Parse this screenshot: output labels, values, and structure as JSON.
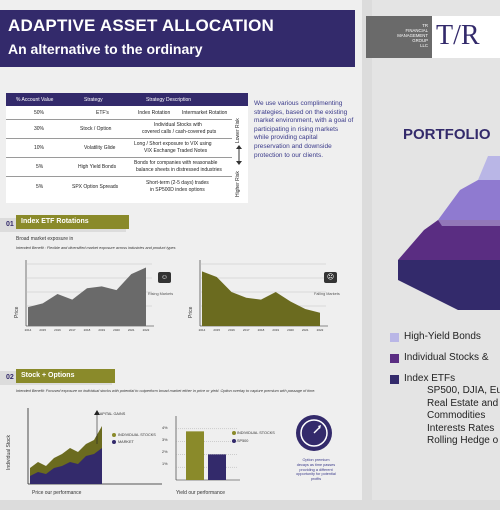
{
  "header": {
    "title": "ADAPTIVE ASSET ALLOCATION",
    "subtitle": "An alternative to the ordinary"
  },
  "logo": {
    "lines": [
      "TR",
      "FINANCIAL",
      "MANAGEMENT",
      "GROUP",
      "LLC"
    ],
    "mark": "T/R"
  },
  "allocation_table": {
    "headers": [
      "% Account Value",
      "Strategy",
      "Strategy Description"
    ],
    "rows": [
      {
        "pct": "50%",
        "strategy": "ETF's",
        "desc1": "Index Rotation",
        "desc2": "Intermarket Rotation"
      },
      {
        "pct": "30%",
        "strategy": "Stock / Option",
        "desc1": "Individual Stocks with",
        "desc2": "covered calls / cash-covered puts"
      },
      {
        "pct": "10%",
        "strategy": "Volatility Glide",
        "desc1": "Long / Short exposure to VIX using",
        "desc2": "VIX Exchange Traded Notes"
      },
      {
        "pct": "5%",
        "strategy": "High Yield Bonds",
        "desc1": "Bonds for companies with reasonable",
        "desc2": "balance sheets in distressed industries"
      },
      {
        "pct": "5%",
        "strategy": "SPX Option Spreads",
        "desc1": "Short-term (2-5 days) trades",
        "desc2": "in SP500D index options"
      }
    ],
    "risk_low": "Lower Risk",
    "risk_high": "Higher Risk"
  },
  "description": "We use various complimenting strategies, based on the existing market environment, with a goal of participating in rising markets while providing capital preservation and downside protection to our clients.",
  "section1": {
    "num": "01",
    "title": "Index ETF Rotations",
    "exposure": "Broad market exposure in",
    "benefit": "Intended Benefit : Flexible and diversified market exposure across industries and product types",
    "chart1_label": "Rising Markets",
    "chart2_label": "Falling Markets",
    "ylabel": "Price",
    "years": [
      "2014",
      "2015",
      "2016",
      "2017",
      "2018",
      "2019",
      "2020",
      "2021",
      "2022"
    ]
  },
  "section2": {
    "num": "02",
    "title": "Stock + Options",
    "benefit": "Intended Benefit: Focused exposure on individual stocks with potential to outperform broad market either in price or yield. Option overlay to capture premium with passage of time.",
    "capital_gains": "CAPITAL GAINS",
    "legend_stocks": "INDIVIDUAL STOCKS",
    "legend_market": "MARKET",
    "ylabel1": "Individual Stock",
    "caption1": "Price our performance",
    "yticks": [
      "4%",
      "3%",
      "2%",
      "1%"
    ],
    "legend2_stocks": "INDIVIDUAL STOCKS",
    "legend2_sp": "SP500",
    "caption2": "Yield our performance",
    "option_text": "Option premium decays as time passes providing a different opportunity for potential profits"
  },
  "portfolio": {
    "title": "PORTFOLIO",
    "legend": [
      {
        "label": "High-Yield Bonds",
        "color": "#b9b6e6"
      },
      {
        "label": "Individual Stocks &",
        "color": "#5a2d82"
      },
      {
        "label": "Index ETFs",
        "color": "#332a6b"
      }
    ],
    "sub_items": [
      "SP500, DJIA, Eu",
      "Real Estate and",
      "Commodities",
      "Interests Rates",
      "Rolling Hedge o"
    ]
  },
  "colors": {
    "navy": "#332a6b",
    "olive": "#8a8a2a",
    "purple": "#5a2d82",
    "lavender": "#b9b6e6"
  },
  "chart_data": [
    {
      "type": "area",
      "title": "Rising Markets",
      "x": [
        "2014",
        "2015",
        "2016",
        "2017",
        "2018",
        "2019",
        "2020",
        "2021",
        "2022"
      ],
      "ylabel": "Price",
      "values": [
        20,
        24,
        34,
        28,
        40,
        42,
        38,
        55,
        62
      ]
    },
    {
      "type": "area",
      "title": "Falling Markets",
      "x": [
        "2014",
        "2015",
        "2016",
        "2017",
        "2018",
        "2019",
        "2020",
        "2021",
        "2022"
      ],
      "ylabel": "Price",
      "values": [
        58,
        52,
        36,
        30,
        28,
        36,
        26,
        18,
        14
      ]
    },
    {
      "type": "bar",
      "categories": [
        "1%",
        "2%",
        "3%",
        "4%"
      ],
      "ylabel": "",
      "series": [
        {
          "name": "INDIVIDUAL STOCKS",
          "values": [
            0,
            0,
            3.8,
            0
          ]
        },
        {
          "name": "SP500",
          "values": [
            0,
            0,
            0,
            2
          ]
        }
      ]
    }
  ]
}
